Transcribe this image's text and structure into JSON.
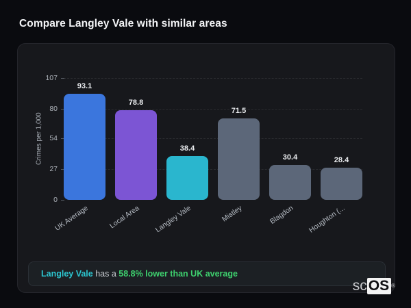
{
  "page": {
    "title": "Compare Langley Vale with similar areas"
  },
  "chart_data": {
    "type": "bar",
    "title": "Compare Langley Vale with similar areas",
    "xlabel": "",
    "ylabel": "Crimes per 1,000",
    "categories": [
      "UK Average",
      "Local Area",
      "Langley Vale",
      "Mistley",
      "Blagdon",
      "Houghton (..."
    ],
    "values": [
      93.1,
      78.8,
      38.4,
      71.5,
      30.4,
      28.4
    ],
    "bar_colors": [
      "#3b76dd",
      "#7c55d4",
      "#2ab6ce",
      "#5c6779",
      "#5c6779",
      "#5c6779"
    ],
    "yticks": [
      0,
      27,
      54,
      80,
      107
    ],
    "ylim": [
      0,
      107
    ],
    "grid": "dashed-horizontal",
    "legend": "none"
  },
  "summary": {
    "area_label": "Langley Vale",
    "connector": " has a ",
    "stat_text": "58.8% lower than UK average",
    "area_color": "#2cc5cf",
    "stat_color": "#3ed06e"
  },
  "logo": {
    "prefix": "sc",
    "suffix": "OS",
    "registered": "®"
  }
}
